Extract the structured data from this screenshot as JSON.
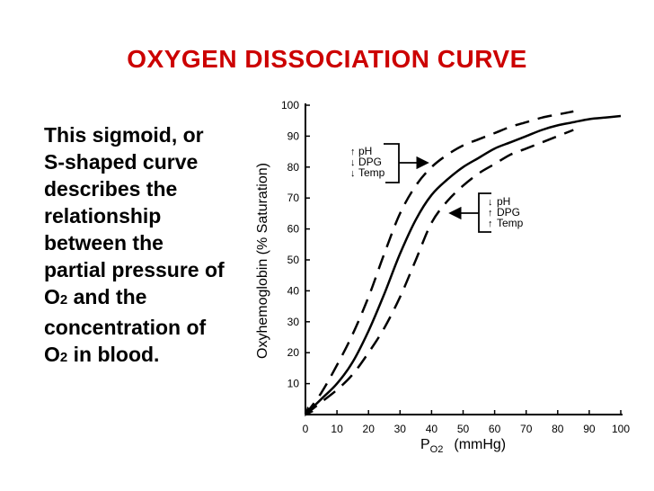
{
  "title": "OXYGEN DISSOCIATION CURVE",
  "description": {
    "part1": "This sigmoid, or S-shaped curve describes the relationship between the partial pressure of O",
    "sub1": "2",
    "part2": " and the concentration of O",
    "sub2": "2",
    "part3": " in blood."
  },
  "chart_data": {
    "type": "line",
    "ylabel": "Oxyhemoglobin (% Saturation)",
    "xlabel_main": "P",
    "xlabel_sub": "O2",
    "xlabel_unit": "(mmHg)",
    "xlim": [
      0,
      100
    ],
    "ylim": [
      0,
      100
    ],
    "xticks": [
      0,
      10,
      20,
      30,
      40,
      50,
      60,
      70,
      80,
      90,
      100
    ],
    "yticks": [
      10,
      20,
      30,
      40,
      50,
      60,
      70,
      80,
      90,
      100
    ],
    "grid": false,
    "series": [
      {
        "style": "solid",
        "points": [
          [
            0,
            0
          ],
          [
            5,
            5
          ],
          [
            10,
            10
          ],
          [
            15,
            17
          ],
          [
            20,
            27
          ],
          [
            25,
            39
          ],
          [
            30,
            52
          ],
          [
            35,
            63
          ],
          [
            40,
            71
          ],
          [
            45,
            76
          ],
          [
            50,
            80
          ],
          [
            55,
            83
          ],
          [
            60,
            86
          ],
          [
            65,
            88
          ],
          [
            70,
            90
          ],
          [
            75,
            92
          ],
          [
            80,
            93.5
          ],
          [
            85,
            94.5
          ],
          [
            90,
            95.5
          ],
          [
            95,
            96
          ],
          [
            100,
            96.5
          ]
        ]
      },
      {
        "style": "dashed",
        "points": [
          [
            0,
            0
          ],
          [
            5,
            7
          ],
          [
            10,
            16
          ],
          [
            15,
            26
          ],
          [
            20,
            38
          ],
          [
            25,
            52
          ],
          [
            30,
            65
          ],
          [
            35,
            74
          ],
          [
            40,
            80
          ],
          [
            45,
            84
          ],
          [
            50,
            87
          ],
          [
            55,
            89
          ],
          [
            60,
            91
          ],
          [
            65,
            93
          ],
          [
            70,
            94.5
          ],
          [
            75,
            96
          ],
          [
            80,
            97
          ],
          [
            85,
            98
          ]
        ]
      },
      {
        "style": "dashed",
        "points": [
          [
            0,
            0
          ],
          [
            5,
            4
          ],
          [
            10,
            8
          ],
          [
            15,
            13
          ],
          [
            20,
            20
          ],
          [
            25,
            28
          ],
          [
            30,
            38
          ],
          [
            35,
            50
          ],
          [
            40,
            62
          ],
          [
            45,
            69
          ],
          [
            50,
            74
          ],
          [
            55,
            78
          ],
          [
            60,
            81
          ],
          [
            65,
            84
          ],
          [
            70,
            86
          ],
          [
            75,
            88
          ],
          [
            80,
            90
          ],
          [
            85,
            92
          ]
        ]
      }
    ],
    "annotations": [
      {
        "lines": [
          {
            "arrow": "↑",
            "text": "pH"
          },
          {
            "arrow": "↓",
            "text": "DPG"
          },
          {
            "arrow": "↓",
            "text": "Temp"
          }
        ]
      },
      {
        "lines": [
          {
            "arrow": "↓",
            "text": "pH"
          },
          {
            "arrow": "↑",
            "text": "DPG"
          },
          {
            "arrow": "↑",
            "text": "Temp"
          }
        ]
      }
    ]
  }
}
